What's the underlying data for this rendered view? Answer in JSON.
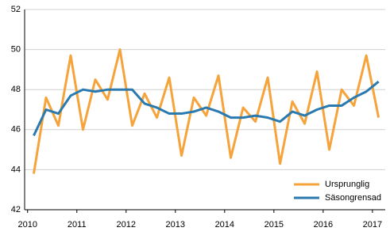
{
  "chart_data": {
    "type": "line",
    "x": [
      2010.125,
      2010.375,
      2010.625,
      2010.875,
      2011.125,
      2011.375,
      2011.625,
      2011.875,
      2012.125,
      2012.375,
      2012.625,
      2012.875,
      2013.125,
      2013.375,
      2013.625,
      2013.875,
      2014.125,
      2014.375,
      2014.625,
      2014.875,
      2015.125,
      2015.375,
      2015.625,
      2015.875,
      2016.125,
      2016.375,
      2016.625,
      2016.875,
      2017.125
    ],
    "series": [
      {
        "name": "Ursprunglig",
        "color": "#f5a33a",
        "values": [
          43.8,
          47.6,
          46.2,
          49.7,
          46.0,
          48.5,
          47.5,
          50.0,
          46.2,
          47.8,
          46.6,
          48.6,
          44.7,
          47.6,
          46.7,
          48.7,
          44.6,
          47.1,
          46.4,
          48.6,
          44.3,
          47.4,
          46.3,
          48.9,
          45.0,
          48.0,
          47.2,
          49.7,
          46.6
        ]
      },
      {
        "name": "Säsongrensad",
        "color": "#2a7ab0",
        "values": [
          45.7,
          47.0,
          46.8,
          47.7,
          48.0,
          47.9,
          48.0,
          48.0,
          48.0,
          47.3,
          47.1,
          46.8,
          46.8,
          46.9,
          47.1,
          46.9,
          46.6,
          46.6,
          46.7,
          46.6,
          46.4,
          46.9,
          46.7,
          47.0,
          47.2,
          47.2,
          47.6,
          47.9,
          48.4
        ]
      }
    ],
    "xlim": [
      2009.94,
      2017.26
    ],
    "xticks": [
      2010,
      2011,
      2012,
      2013,
      2014,
      2015,
      2016,
      2017
    ],
    "ylim": [
      42,
      52
    ],
    "yticks": [
      42,
      44,
      46,
      48,
      50,
      52
    ],
    "grid": true,
    "legend": "lower-right"
  }
}
